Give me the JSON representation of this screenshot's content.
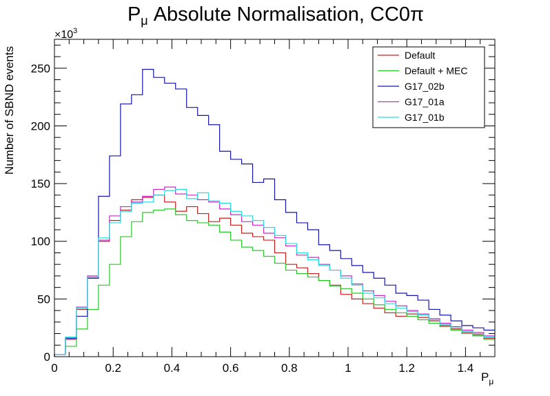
{
  "chart_data": {
    "type": "line",
    "style": "step-histogram",
    "title_main": "P",
    "title_sub": "μ",
    "title_rest": " Absolute Normalisation, CC0π",
    "xlabel_main": "P",
    "xlabel_sub": "μ",
    "ylabel": "Number of SBND events",
    "y_multiplier_base": "×10",
    "y_multiplier_exp": "3",
    "xlim": [
      0,
      1.5
    ],
    "ylim": [
      0,
      275
    ],
    "x_ticks": [
      0,
      0.2,
      0.4,
      0.6,
      0.8,
      1.0,
      1.2,
      1.4
    ],
    "x_tick_labels": [
      "0",
      "0.2",
      "0.4",
      "0.6",
      "0.8",
      "1",
      "1.2",
      "1.4"
    ],
    "y_ticks": [
      0,
      50,
      100,
      150,
      200,
      250
    ],
    "y_tick_labels": [
      "0",
      "50",
      "100",
      "150",
      "200",
      "250"
    ],
    "bin_edges": [
      0,
      0.0375,
      0.075,
      0.1125,
      0.15,
      0.1875,
      0.225,
      0.2625,
      0.3,
      0.3375,
      0.375,
      0.4125,
      0.45,
      0.4875,
      0.525,
      0.5625,
      0.6,
      0.6375,
      0.675,
      0.7125,
      0.75,
      0.7875,
      0.825,
      0.8625,
      0.9,
      0.9375,
      0.975,
      1.0125,
      1.05,
      1.0875,
      1.125,
      1.1625,
      1.2,
      1.2375,
      1.275,
      1.3125,
      1.35,
      1.3875,
      1.425,
      1.4625,
      1.5
    ],
    "legend_position": "top-right",
    "grid": false,
    "series": [
      {
        "name": "Default",
        "color": "#c81e1e",
        "values": [
          2,
          15,
          41,
          68,
          100,
          118,
          127,
          136,
          138,
          140,
          134,
          126,
          130,
          124,
          117,
          120,
          114,
          107,
          104,
          101,
          90,
          80,
          77,
          72,
          66,
          62,
          54,
          50,
          46,
          42,
          38,
          35,
          37,
          34,
          31,
          27,
          24,
          21,
          19,
          16
        ]
      },
      {
        "name": "Default + MEC",
        "color": "#28c828",
        "values": [
          2,
          9,
          24,
          41,
          62,
          80,
          104,
          117,
          125,
          127,
          128,
          123,
          118,
          116,
          114,
          108,
          101,
          95,
          92,
          87,
          81,
          75,
          72,
          69,
          66,
          61,
          59,
          55,
          50,
          45,
          41,
          38,
          35,
          32,
          29,
          26,
          23,
          20,
          18,
          15
        ]
      },
      {
        "name": "G17_02b",
        "color": "#1414aa",
        "values": [
          2,
          16,
          35,
          68,
          139,
          174,
          219,
          227,
          249,
          242,
          237,
          232,
          216,
          209,
          201,
          178,
          171,
          167,
          151,
          154,
          136,
          125,
          116,
          110,
          97,
          92,
          85,
          79,
          73,
          68,
          62,
          55,
          53,
          49,
          41,
          36,
          31,
          27,
          25,
          23
        ]
      },
      {
        "name": "G17_01a",
        "color": "#c828c8",
        "values": [
          2,
          17,
          43,
          70,
          101,
          122,
          130,
          134,
          139,
          145,
          147,
          141,
          140,
          136,
          134,
          128,
          123,
          117,
          114,
          107,
          103,
          96,
          88,
          86,
          80,
          75,
          70,
          63,
          57,
          53,
          48,
          44,
          40,
          37,
          33,
          29,
          26,
          23,
          21,
          18
        ]
      },
      {
        "name": "G17_01b",
        "color": "#28dcdc",
        "values": [
          2,
          17,
          42,
          69,
          103,
          116,
          126,
          133,
          134,
          140,
          144,
          145,
          137,
          142,
          135,
          133,
          126,
          122,
          118,
          112,
          105,
          98,
          90,
          84,
          79,
          75,
          68,
          62,
          55,
          51,
          46,
          42,
          39,
          36,
          32,
          28,
          25,
          22,
          20,
          17
        ]
      }
    ]
  }
}
